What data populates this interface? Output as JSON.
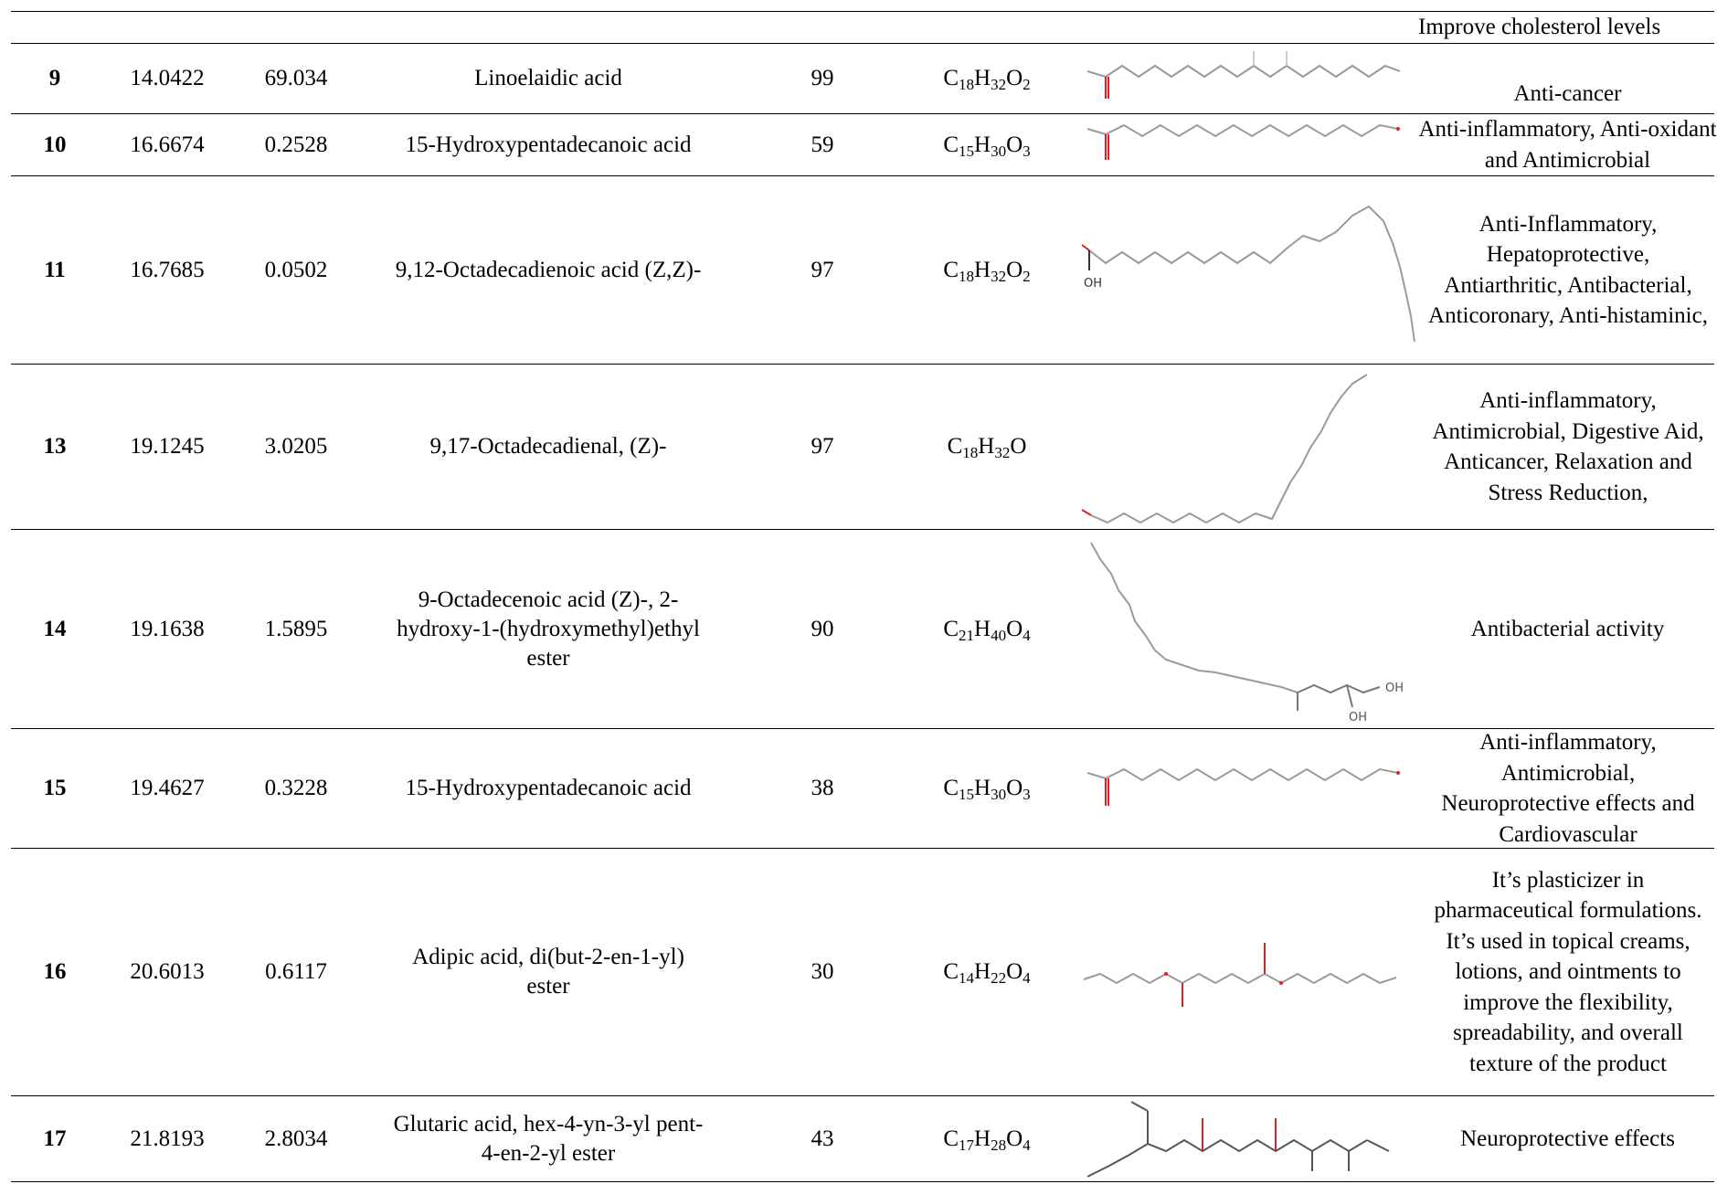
{
  "table": {
    "top_activity": "Improve cholesterol levels",
    "rows": [
      {
        "no": "9",
        "rt": "14.0422",
        "area": "69.034",
        "name": "Linoelaidic acid",
        "prob": "99",
        "formula": {
          "C": "18",
          "H": "32",
          "O": "2"
        },
        "activity": "Anti-cancer",
        "structure": "linoelaidic-acid-structure"
      },
      {
        "no": "10",
        "rt": "16.6674",
        "area": "0.2528",
        "name": "15-Hydroxypentadecanoic acid",
        "prob": "59",
        "formula": {
          "C": "15",
          "H": "30",
          "O": "3"
        },
        "activity": "Anti-inflammatory, Anti-oxidant and Antimicrobial",
        "structure": "hydroxypentadecanoic-acid-structure"
      },
      {
        "no": "11",
        "rt": "16.7685",
        "area": "0.0502",
        "name": "9,12-Octadecadienoic acid (Z,Z)-",
        "prob": "97",
        "formula": {
          "C": "18",
          "H": "32",
          "O": "2"
        },
        "activity": "Anti-Inflammatory, Hepatoprotective, Antiarthritic, Antibacterial, Anticoronary, Anti-histaminic,",
        "structure": "octadecadienoic-acid-structure"
      },
      {
        "no": "13",
        "rt": "19.1245",
        "area": "3.0205",
        "name": "9,17-Octadecadienal, (Z)-",
        "prob": "97",
        "formula": {
          "C": "18",
          "H": "32",
          "O": ""
        },
        "activity": "Anti-inflammatory, Antimicrobial, Digestive Aid, Anticancer, Relaxation and Stress Reduction,",
        "structure": "octadecadienal-structure"
      },
      {
        "no": "14",
        "rt": "19.1638",
        "area": "1.5895",
        "name": "9-Octadecenoic acid (Z)-, 2-hydroxy-1-(hydroxymethyl)ethyl ester",
        "prob": "90",
        "formula": {
          "C": "21",
          "H": "40",
          "O": "4"
        },
        "activity": "Antibacterial activity",
        "structure": "monoolein-structure"
      },
      {
        "no": "15",
        "rt": "19.4627",
        "area": "0.3228",
        "name": "15-Hydroxypentadecanoic acid",
        "prob": "38",
        "formula": {
          "C": "15",
          "H": "30",
          "O": "3"
        },
        "activity": "Anti-inflammatory, Antimicrobial, Neuroprotective effects and Cardiovascular",
        "structure": "hydroxypentadecanoic-acid-structure"
      },
      {
        "no": "16",
        "rt": "20.6013",
        "area": "0.6117",
        "name": "Adipic acid, di(but-2-en-1-yl) ester",
        "prob": "30",
        "formula": {
          "C": "14",
          "H": "22",
          "O": "4"
        },
        "activity": "It’s plasticizer in pharmaceutical formulations. It’s used in topical creams, lotions, and ointments to improve the flexibility, spreadability, and overall texture of the product",
        "structure": "adipic-ester-structure"
      },
      {
        "no": "17",
        "rt": "21.8193",
        "area": "2.8034",
        "name": "Glutaric acid, hex-4-yn-3-yl pent-4-en-2-yl ester",
        "prob": "43",
        "formula": {
          "C": "17",
          "H": "28",
          "O": "4"
        },
        "activity": "Neuroprotective effects",
        "structure": "glutaric-ester-structure"
      }
    ]
  },
  "colors": {
    "line": "#000000",
    "bond": "#9a9a9a",
    "oxygen": "#e02020"
  }
}
